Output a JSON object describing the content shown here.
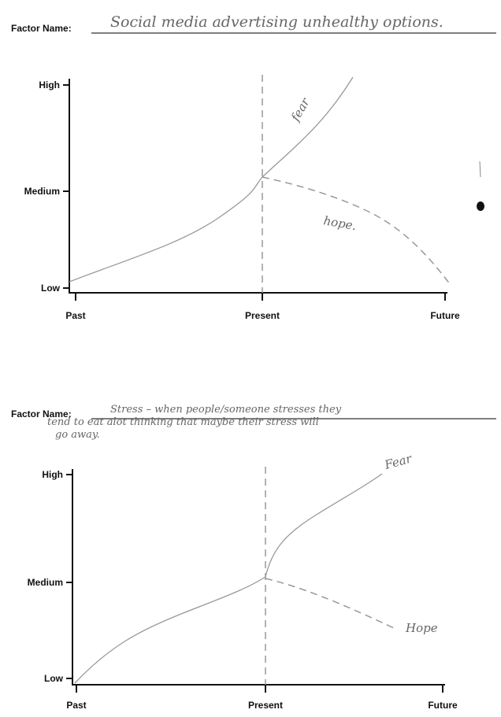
{
  "worksheets": [
    {
      "factor_label": "Factor Name:",
      "factor_text": [
        "Social media advertising unhealthy options."
      ],
      "y_labels": [
        "High",
        "Medium",
        "Low"
      ],
      "x_labels": [
        "Past",
        "Present",
        "Future"
      ],
      "curve_labels": [
        "fear",
        "hope."
      ]
    },
    {
      "factor_label": "Factor Name:",
      "factor_text": [
        "Stress – when people/someone stresses they",
        "tend to eat alot thinking that maybe their stress will",
        "go away."
      ],
      "y_labels": [
        "High",
        "Medium",
        "Low"
      ],
      "x_labels": [
        "Past",
        "Present",
        "Future"
      ],
      "curve_labels": [
        "Fear",
        "Hope"
      ]
    }
  ]
}
